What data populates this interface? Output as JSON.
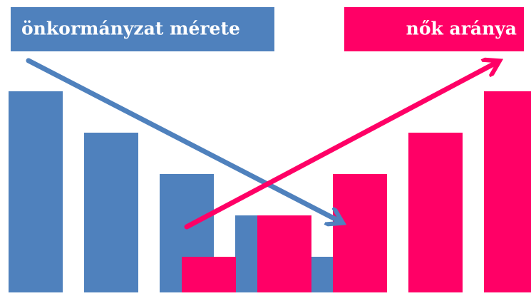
{
  "chart_data": {
    "type": "bar",
    "series": [
      {
        "name": "önkormányzat mérete",
        "color": "#4f81bd",
        "values": [
          282,
          224,
          166,
          108,
          50
        ]
      },
      {
        "name": "nők aránya",
        "color": "#ff0066",
        "values": [
          50,
          108,
          166,
          224,
          282
        ]
      }
    ],
    "ylim": [
      0,
      282
    ]
  }
}
